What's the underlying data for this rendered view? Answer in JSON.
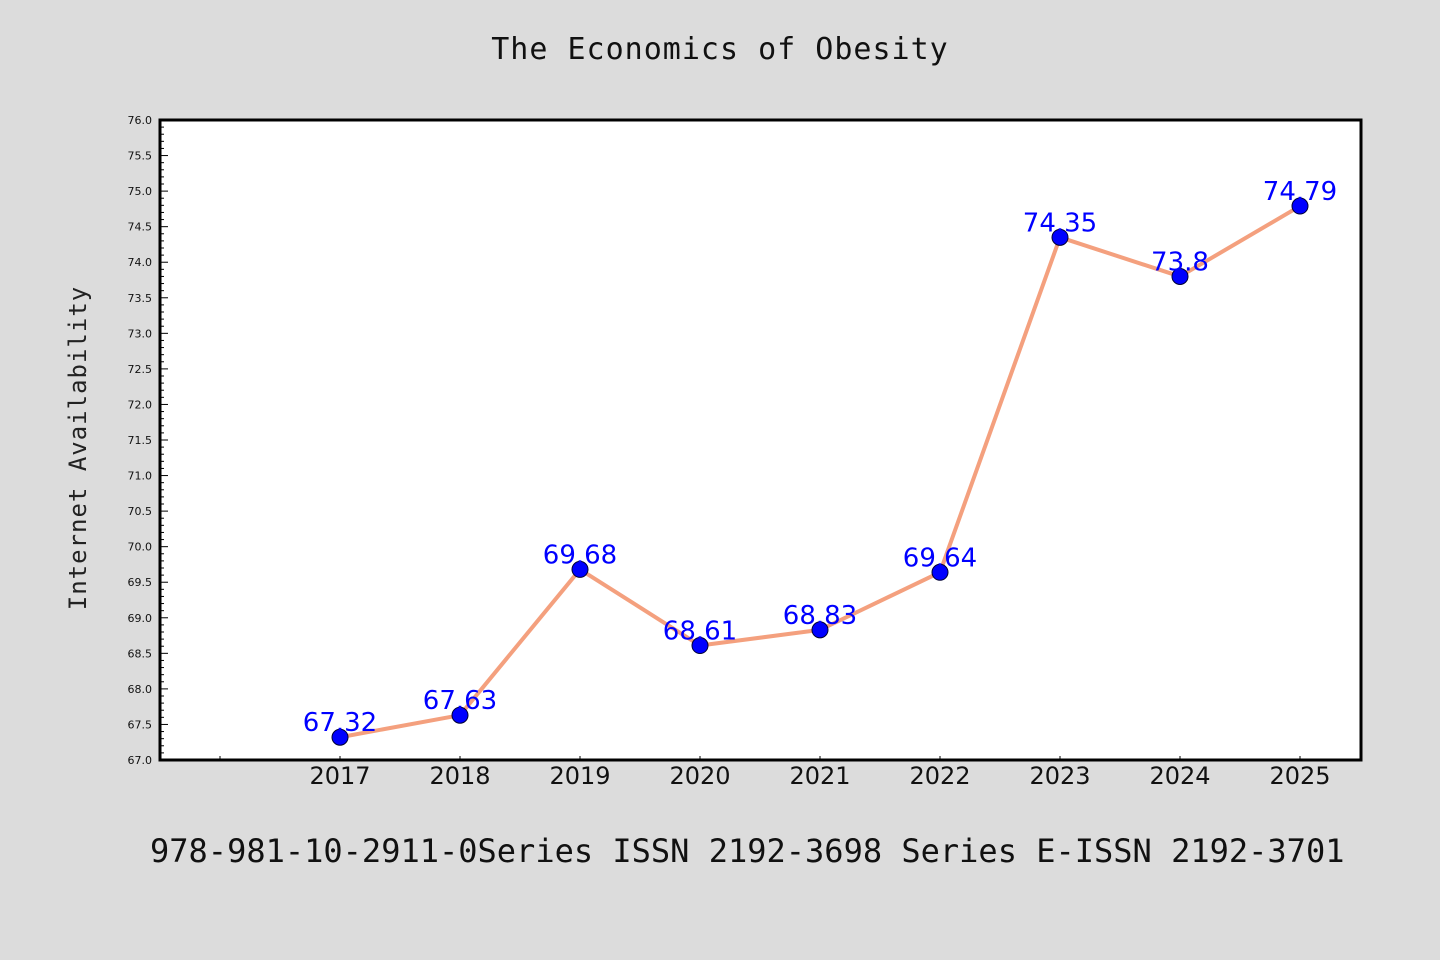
{
  "chart_data": {
    "type": "line",
    "title": "The Economics of Obesity",
    "xlabel": "",
    "ylabel": "Internet Availability",
    "categories": [
      "2017",
      "2018",
      "2019",
      "2020",
      "2021",
      "2022",
      "2023",
      "2024",
      "2025"
    ],
    "series": [
      {
        "values": [
          67.32,
          67.63,
          69.68,
          68.61,
          68.83,
          69.64,
          74.35,
          73.8,
          74.79
        ],
        "labels": [
          "67.32",
          "67.63",
          "69.68",
          "68.61",
          "68.83",
          "69.64",
          "74.35",
          "73.8",
          "74.79"
        ],
        "line_color": "#f4a07e",
        "marker_color": "#0000ff"
      }
    ],
    "ylim": [
      67.0,
      76.0
    ],
    "yticks": [
      "67.0",
      "67.5",
      "68.0",
      "68.5",
      "69.0",
      "69.5",
      "70.0",
      "70.5",
      "71.0",
      "71.5",
      "72.0",
      "72.5",
      "73.0",
      "73.5",
      "74.0",
      "74.5",
      "75.0",
      "75.5",
      "76.0"
    ],
    "grid": false,
    "legend": "none"
  },
  "footer": {
    "text": "978-981-10-2911-0Series ISSN 2192-3698 Series E-ISSN 2192-3701"
  },
  "colors": {
    "background": "#dcdcdc",
    "plot_background": "#ffffff",
    "line": "#f4a07e",
    "marker": "#0000ff",
    "data_label": "#0000ff"
  }
}
